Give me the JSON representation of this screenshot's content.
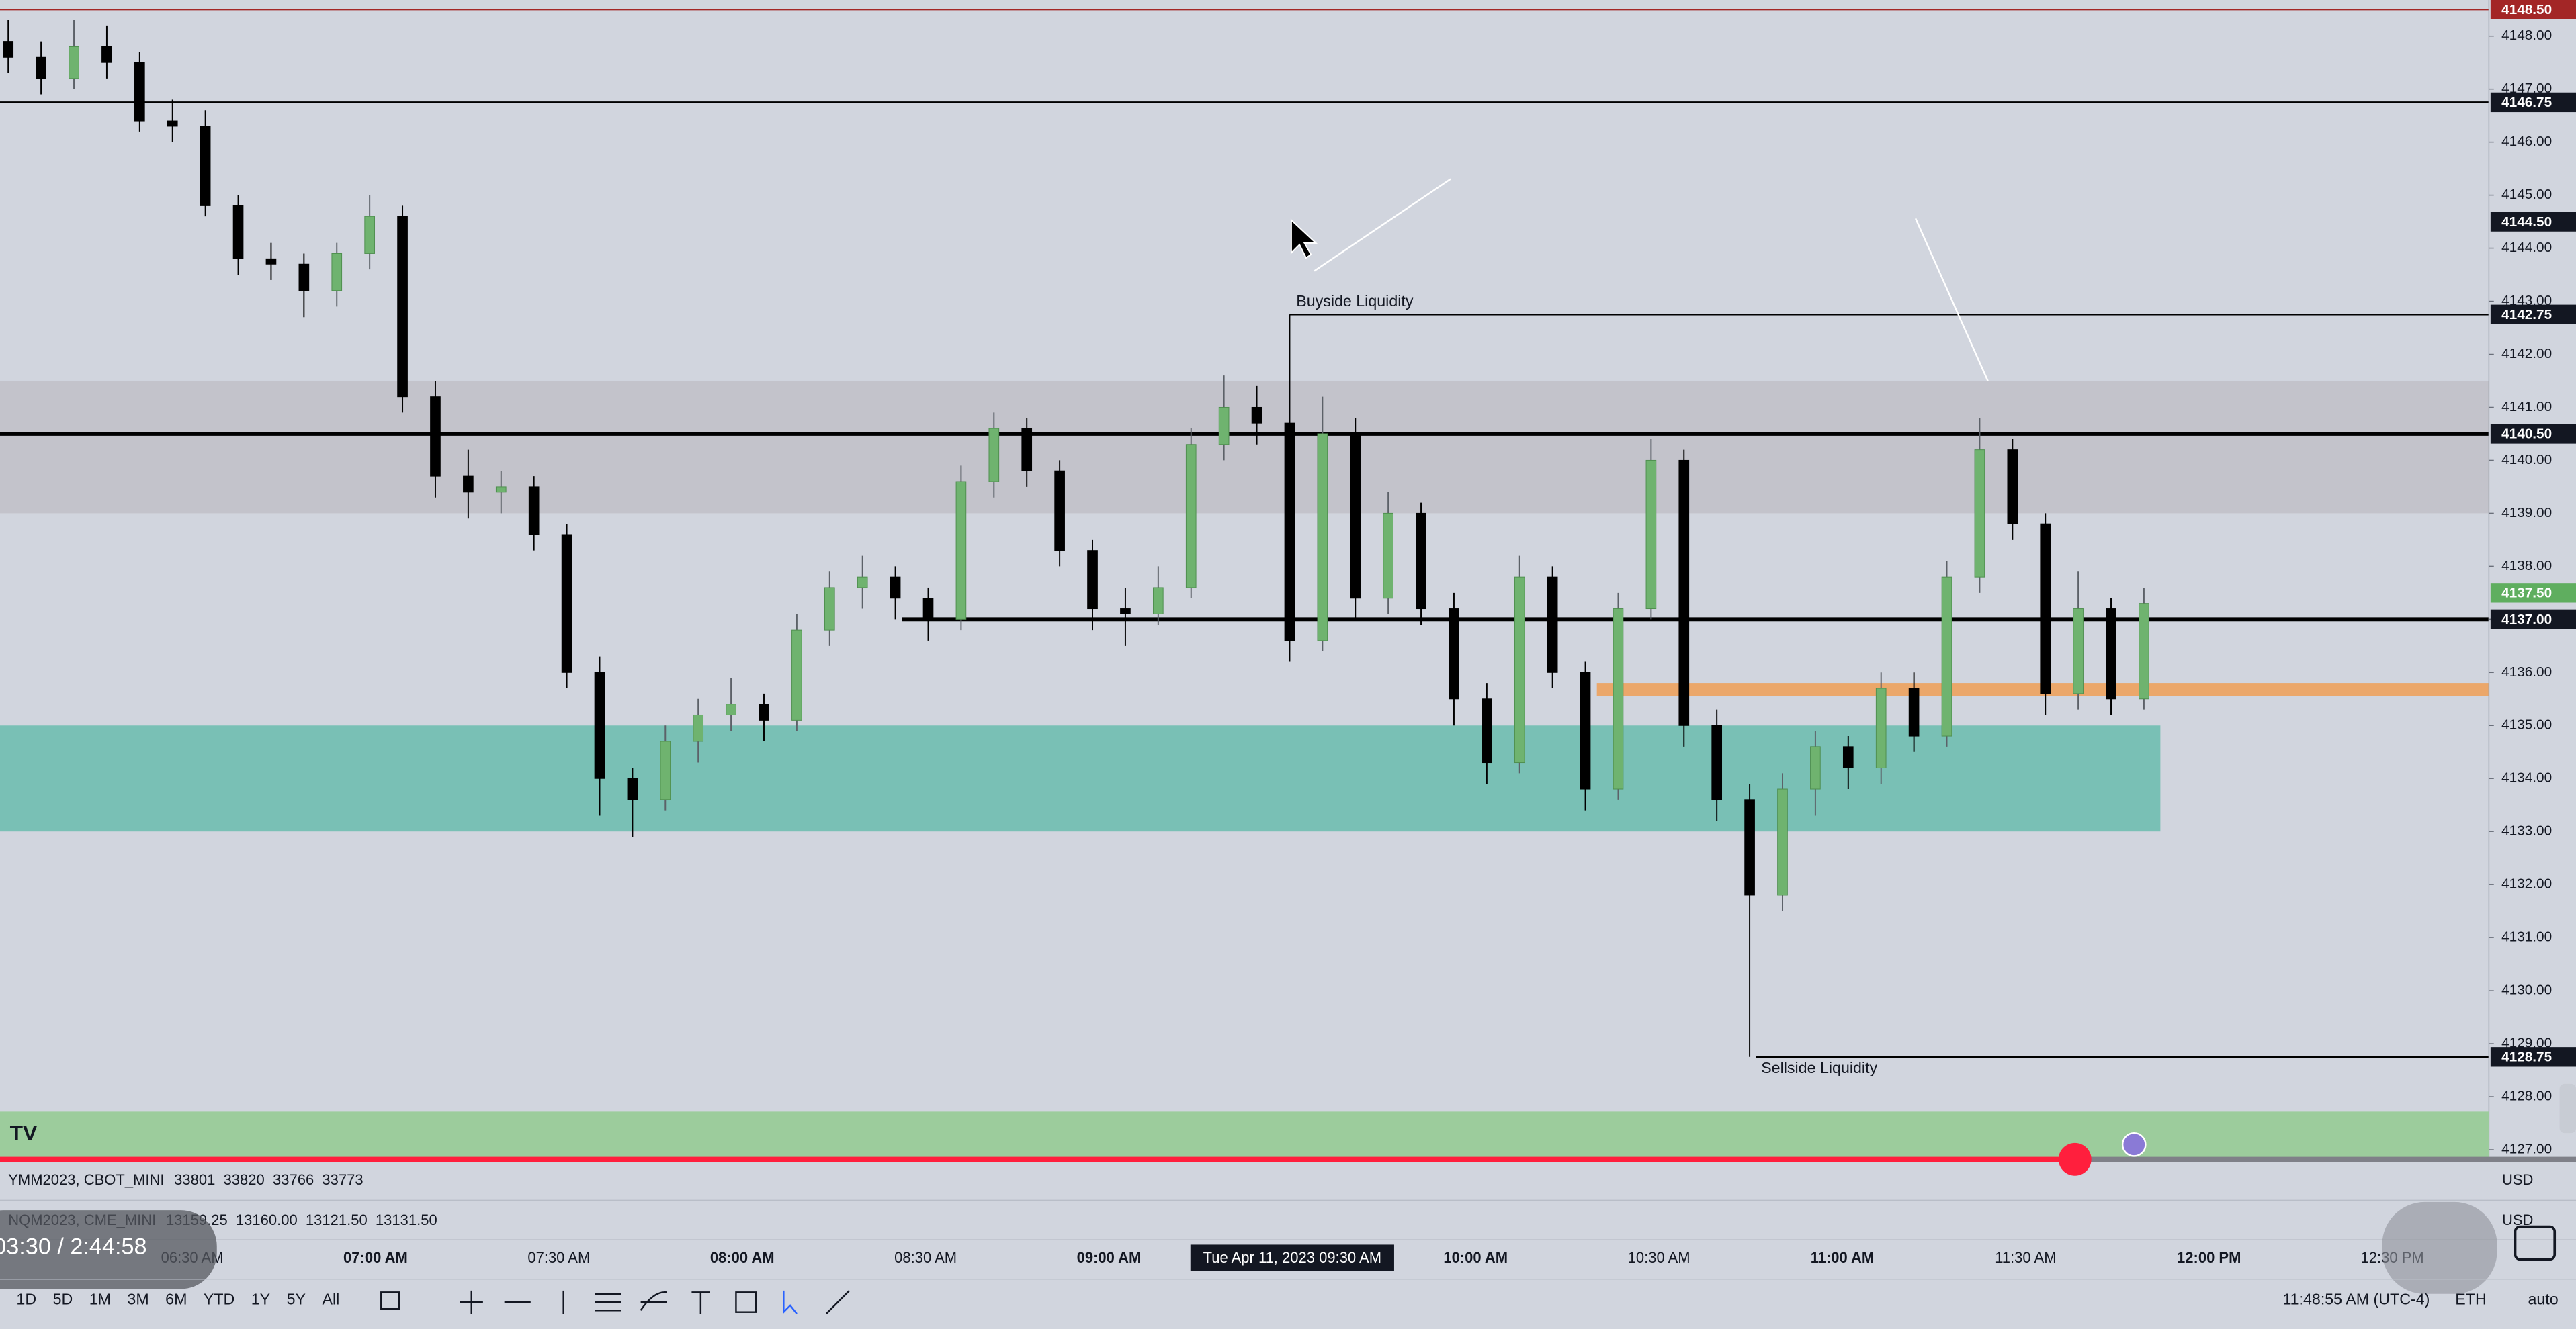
{
  "chart": {
    "price_lim": [
      4126.85,
      4148.68
    ],
    "price_ticks": [
      {
        "value": 4148,
        "label": "4148.00"
      },
      {
        "value": 4147,
        "label": "4147.00"
      },
      {
        "value": 4146,
        "label": "4146.00"
      },
      {
        "value": 4145,
        "label": "4145.00"
      },
      {
        "value": 4144,
        "label": "4144.00"
      },
      {
        "value": 4143,
        "label": "4143.00"
      },
      {
        "value": 4142,
        "label": "4142.00"
      },
      {
        "value": 4141,
        "label": "4141.00"
      },
      {
        "value": 4140,
        "label": "4140.00"
      },
      {
        "value": 4139,
        "label": "4139.00"
      },
      {
        "value": 4138,
        "label": "4138.00"
      },
      {
        "value": 4137,
        "label": "4137.00"
      },
      {
        "value": 4136,
        "label": "4136.00"
      },
      {
        "value": 4135,
        "label": "4135.00"
      },
      {
        "value": 4134,
        "label": "4134.00"
      },
      {
        "value": 4133,
        "label": "4133.00"
      },
      {
        "value": 4132,
        "label": "4132.00"
      },
      {
        "value": 4131,
        "label": "4131.00"
      },
      {
        "value": 4130,
        "label": "4130.00"
      },
      {
        "value": 4129,
        "label": "4129.00"
      },
      {
        "value": 4128,
        "label": "4128.00"
      },
      {
        "value": 4127,
        "label": "4127.00"
      }
    ],
    "levels": [
      {
        "value": 4148.5,
        "label": "4148.50",
        "color": "#a32626",
        "line": true
      },
      {
        "value": 4146.75,
        "label": "4146.75",
        "color": "#131722",
        "line": true
      },
      {
        "value": 4144.5,
        "label": "4144.50",
        "color": "#131722",
        "line": false
      },
      {
        "value": 4142.75,
        "label": "4142.75",
        "color": "#131722",
        "line": true
      },
      {
        "value": 4140.5,
        "label": "4140.50",
        "color": "#131722",
        "line": true
      },
      {
        "value": 4137.5,
        "label": "4137.50",
        "color": "#5fae5f",
        "line": false
      },
      {
        "value": 4137,
        "label": "4137.00",
        "color": "#131722",
        "line": true
      },
      {
        "value": 4128.75,
        "label": "4128.75",
        "color": "#131722",
        "line": true
      }
    ],
    "zones": [
      {
        "from": 4139.0,
        "to": 4141.5,
        "color": "#c3c3cb"
      },
      {
        "from": 4133.0,
        "to": 4135.0,
        "color": "#79c0b5"
      },
      {
        "from": 4135.55,
        "to": 4135.8,
        "color": "#eba76a"
      }
    ],
    "candles": [
      [
        4147.9,
        4148.3,
        4147.3,
        4147.6
      ],
      [
        4147.6,
        4147.9,
        4146.9,
        4147.2
      ],
      [
        4147.2,
        4148.3,
        4147.0,
        4147.8
      ],
      [
        4147.8,
        4148.2,
        4147.2,
        4147.5
      ],
      [
        4147.5,
        4147.7,
        4146.2,
        4146.4
      ],
      [
        4146.4,
        4146.8,
        4146.0,
        4146.3
      ],
      [
        4146.3,
        4146.6,
        4144.6,
        4144.8
      ],
      [
        4144.8,
        4145.0,
        4143.5,
        4143.8
      ],
      [
        4143.8,
        4144.1,
        4143.4,
        4143.7
      ],
      [
        4143.7,
        4143.9,
        4142.7,
        4143.2
      ],
      [
        4143.2,
        4144.1,
        4142.9,
        4143.9
      ],
      [
        4143.9,
        4145.0,
        4143.6,
        4144.6
      ],
      [
        4144.6,
        4144.8,
        4140.9,
        4141.2
      ],
      [
        4141.2,
        4141.5,
        4139.3,
        4139.7
      ],
      [
        4139.7,
        4140.2,
        4138.9,
        4139.4
      ],
      [
        4139.4,
        4139.8,
        4139.0,
        4139.5
      ],
      [
        4139.5,
        4139.7,
        4138.3,
        4138.6
      ],
      [
        4138.6,
        4138.8,
        4135.7,
        4136.0
      ],
      [
        4136.0,
        4136.3,
        4133.3,
        4134.0
      ],
      [
        4134.0,
        4134.2,
        4132.9,
        4133.6
      ],
      [
        4133.6,
        4135.0,
        4133.4,
        4134.7
      ],
      [
        4134.7,
        4135.5,
        4134.3,
        4135.2
      ],
      [
        4135.2,
        4135.9,
        4134.9,
        4135.4
      ],
      [
        4135.4,
        4135.6,
        4134.7,
        4135.1
      ],
      [
        4135.1,
        4137.1,
        4134.9,
        4136.8
      ],
      [
        4136.8,
        4137.9,
        4136.5,
        4137.6
      ],
      [
        4137.6,
        4138.2,
        4137.2,
        4137.8
      ],
      [
        4137.8,
        4138.0,
        4137.0,
        4137.4
      ],
      [
        4137.4,
        4137.6,
        4136.6,
        4137.0
      ],
      [
        4137.0,
        4139.9,
        4136.8,
        4139.6
      ],
      [
        4139.6,
        4140.9,
        4139.3,
        4140.6
      ],
      [
        4140.6,
        4140.8,
        4139.5,
        4139.8
      ],
      [
        4139.8,
        4140.0,
        4138.0,
        4138.3
      ],
      [
        4138.3,
        4138.5,
        4136.8,
        4137.2
      ],
      [
        4137.2,
        4137.6,
        4136.5,
        4137.1
      ],
      [
        4137.1,
        4138.0,
        4136.9,
        4137.6
      ],
      [
        4137.6,
        4140.6,
        4137.4,
        4140.3
      ],
      [
        4140.3,
        4141.6,
        4140.0,
        4141.0
      ],
      [
        4141.0,
        4141.4,
        4140.3,
        4140.7
      ],
      [
        4140.7,
        4142.75,
        4136.2,
        4136.6
      ],
      [
        4136.6,
        4141.2,
        4136.4,
        4140.5
      ],
      [
        4140.5,
        4140.8,
        4137.0,
        4137.4
      ],
      [
        4137.4,
        4139.4,
        4137.1,
        4139.0
      ],
      [
        4139.0,
        4139.2,
        4136.9,
        4137.2
      ],
      [
        4137.2,
        4137.5,
        4135.0,
        4135.5
      ],
      [
        4135.5,
        4135.8,
        4133.9,
        4134.3
      ],
      [
        4134.3,
        4138.2,
        4134.1,
        4137.8
      ],
      [
        4137.8,
        4138.0,
        4135.7,
        4136.0
      ],
      [
        4136.0,
        4136.2,
        4133.4,
        4133.8
      ],
      [
        4133.8,
        4137.5,
        4133.6,
        4137.2
      ],
      [
        4137.2,
        4140.4,
        4137.0,
        4140.0
      ],
      [
        4140.0,
        4140.2,
        4134.6,
        4135.0
      ],
      [
        4135.0,
        4135.3,
        4133.2,
        4133.6
      ],
      [
        4133.6,
        4133.9,
        4128.75,
        4131.8
      ],
      [
        4131.8,
        4134.1,
        4131.5,
        4133.8
      ],
      [
        4133.8,
        4134.9,
        4133.3,
        4134.6
      ],
      [
        4134.6,
        4134.8,
        4133.8,
        4134.2
      ],
      [
        4134.2,
        4136.0,
        4133.9,
        4135.7
      ],
      [
        4135.7,
        4136.0,
        4134.5,
        4134.8
      ],
      [
        4134.8,
        4138.1,
        4134.6,
        4137.8
      ],
      [
        4137.8,
        4140.8,
        4137.5,
        4140.2
      ],
      [
        4140.2,
        4140.4,
        4138.5,
        4138.8
      ],
      [
        4138.8,
        4139.0,
        4135.2,
        4135.6
      ],
      [
        4135.6,
        4137.9,
        4135.3,
        4137.2
      ],
      [
        4137.2,
        4137.4,
        4135.2,
        4135.5
      ],
      [
        4135.5,
        4137.6,
        4135.3,
        4137.3
      ]
    ],
    "up_color": "#6fb36f",
    "down_color": "#000000",
    "annotations": {
      "buyside": "Buyside Liquidity",
      "sellside": "Sellside Liquidity"
    },
    "time_labels": [
      "06:30 AM",
      "07:00 AM",
      "07:30 AM",
      "08:00 AM",
      "08:30 AM",
      "09:00 AM",
      "Tue Apr 11, 2023   09:30 AM",
      "10:00 AM",
      "10:30 AM",
      "11:00 AM",
      "11:30 AM",
      "12:00 PM",
      "12:30 PM"
    ]
  },
  "symbols": [
    {
      "name": "YMM2023, CBOT_MINI",
      "quotes": [
        "33801",
        "33820",
        "33766",
        "33773"
      ],
      "currency": "USD"
    },
    {
      "name": "NQM2023, CME_MINI",
      "quotes": [
        "13159.25",
        "13160.00",
        "13121.50",
        "13131.50"
      ],
      "currency": "USD"
    }
  ],
  "toolbar": {
    "ranges": [
      "1D",
      "5D",
      "1M",
      "3M",
      "6M",
      "YTD",
      "1Y",
      "5Y",
      "All"
    ],
    "clock": "11:48:55 AM (UTC-4)",
    "session": "ETH",
    "scale": "auto"
  },
  "video": {
    "time": "03:30 / 2:44:58"
  }
}
